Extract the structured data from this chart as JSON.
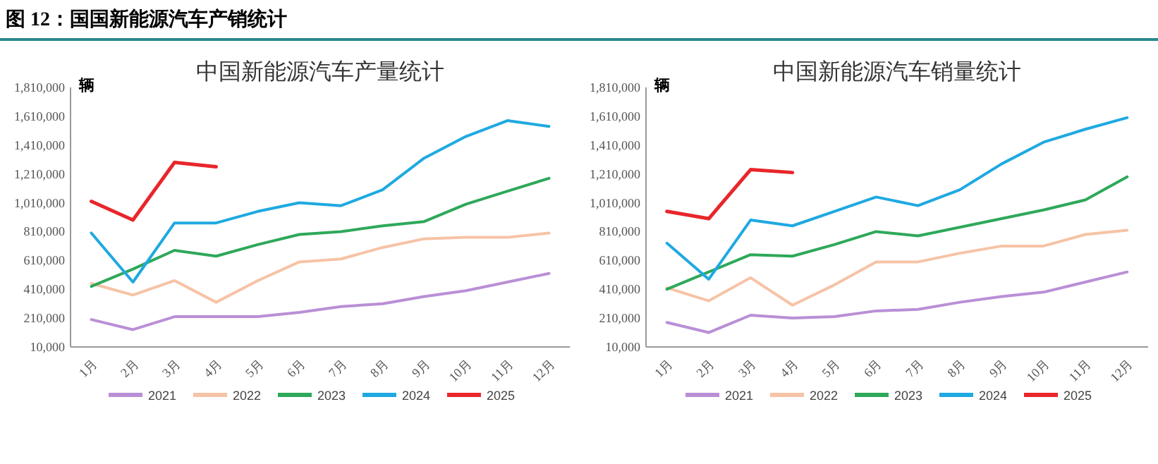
{
  "chart_data": [
    {
      "type": "other",
      "title": "图 12：国国新能源汽车产销统计"
    },
    {
      "type": "line",
      "title": "中国新能源汽车产量统计",
      "ylabel": "辆",
      "legend": "bottom",
      "grid": false,
      "marker": "none",
      "line_style": "solid",
      "categories": [
        "1月",
        "2月",
        "3月",
        "4月",
        "5月",
        "6月",
        "7月",
        "8月",
        "9月",
        "10月",
        "11月",
        "12月"
      ],
      "ylim": [
        10000,
        1810000
      ],
      "yticks": [
        {
          "value": 10000,
          "label": "10,000"
        },
        {
          "value": 210000,
          "label": "210,000"
        },
        {
          "value": 410000,
          "label": "410,000"
        },
        {
          "value": 610000,
          "label": "610,000"
        },
        {
          "value": 810000,
          "label": "810,000"
        },
        {
          "value": 1010000,
          "label": "1,010,000"
        },
        {
          "value": 1210000,
          "label": "1,210,000"
        },
        {
          "value": 1410000,
          "label": "1,410,000"
        },
        {
          "value": 1610000,
          "label": "1,610,000"
        },
        {
          "value": 1810000,
          "label": "1,810,000"
        }
      ],
      "series": [
        {
          "name": "2021",
          "color": "#b98fd6",
          "values": [
            200000,
            130000,
            220000,
            220000,
            220000,
            250000,
            290000,
            310000,
            360000,
            400000,
            460000,
            520000
          ]
        },
        {
          "name": "2022",
          "color": "#f6c3a6",
          "values": [
            450000,
            370000,
            470000,
            320000,
            470000,
            600000,
            620000,
            700000,
            760000,
            770000,
            770000,
            800000
          ]
        },
        {
          "name": "2023",
          "color": "#2ea85a",
          "values": [
            430000,
            550000,
            680000,
            640000,
            720000,
            790000,
            810000,
            850000,
            880000,
            1000000,
            1090000,
            1180000
          ]
        },
        {
          "name": "2024",
          "color": "#1fa9e1",
          "values": [
            800000,
            460000,
            870000,
            870000,
            950000,
            1010000,
            990000,
            1100000,
            1320000,
            1470000,
            1580000,
            1540000
          ]
        },
        {
          "name": "2025",
          "color": "#e8262b",
          "values": [
            1020000,
            890000,
            1290000,
            1260000,
            null,
            null,
            null,
            null,
            null,
            null,
            null,
            null
          ]
        }
      ]
    },
    {
      "type": "line",
      "title": "中国新能源汽车销量统计",
      "ylabel": "辆",
      "legend": "bottom",
      "grid": false,
      "marker": "none",
      "line_style": "solid",
      "categories": [
        "1月",
        "2月",
        "3月",
        "4月",
        "5月",
        "6月",
        "7月",
        "8月",
        "9月",
        "10月",
        "11月",
        "12月"
      ],
      "ylim": [
        10000,
        1810000
      ],
      "yticks": [
        {
          "value": 10000,
          "label": "10,000"
        },
        {
          "value": 210000,
          "label": "210,000"
        },
        {
          "value": 410000,
          "label": "410,000"
        },
        {
          "value": 610000,
          "label": "610,000"
        },
        {
          "value": 810000,
          "label": "810,000"
        },
        {
          "value": 1010000,
          "label": "1,010,000"
        },
        {
          "value": 1210000,
          "label": "1,210,000"
        },
        {
          "value": 1410000,
          "label": "1,410,000"
        },
        {
          "value": 1610000,
          "label": "1,610,000"
        },
        {
          "value": 1810000,
          "label": "1,810,000"
        }
      ],
      "series": [
        {
          "name": "2021",
          "color": "#b98fd6",
          "values": [
            180000,
            110000,
            230000,
            210000,
            220000,
            260000,
            270000,
            320000,
            360000,
            390000,
            460000,
            530000
          ]
        },
        {
          "name": "2022",
          "color": "#f6c3a6",
          "values": [
            420000,
            330000,
            490000,
            300000,
            440000,
            600000,
            600000,
            660000,
            710000,
            710000,
            790000,
            820000
          ]
        },
        {
          "name": "2023",
          "color": "#2ea85a",
          "values": [
            410000,
            530000,
            650000,
            640000,
            720000,
            810000,
            780000,
            840000,
            900000,
            960000,
            1030000,
            1190000
          ]
        },
        {
          "name": "2024",
          "color": "#1fa9e1",
          "values": [
            730000,
            480000,
            890000,
            850000,
            950000,
            1050000,
            990000,
            1100000,
            1280000,
            1430000,
            1520000,
            1600000
          ]
        },
        {
          "name": "2025",
          "color": "#e8262b",
          "values": [
            950000,
            900000,
            1240000,
            1220000,
            null,
            null,
            null,
            null,
            null,
            null,
            null,
            null
          ]
        }
      ]
    }
  ]
}
